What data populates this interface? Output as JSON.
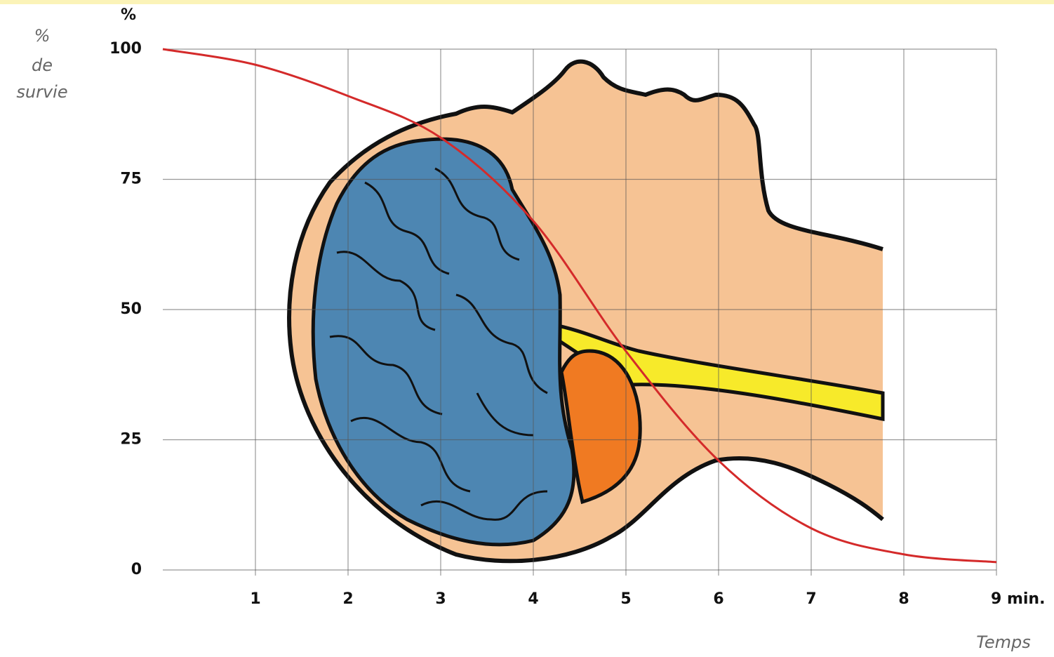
{
  "chart_data": {
    "type": "line",
    "y_unit": "%",
    "y_label": [
      "%",
      "de",
      "survie"
    ],
    "x_label": "Temps",
    "x": [
      0,
      1,
      2,
      3,
      4,
      5,
      6,
      7,
      8,
      9
    ],
    "series": [
      {
        "color": "#d42a2a",
        "values": [
          100,
          97,
          91,
          83,
          67,
          42,
          21,
          8,
          3,
          1.5
        ]
      }
    ],
    "xlim": [
      0,
      9
    ],
    "ylim": [
      0,
      100
    ],
    "xticks": [
      1,
      2,
      3,
      4,
      5,
      6,
      7,
      8,
      {
        "value": 9,
        "label": "9 min."
      }
    ],
    "yticks": [
      0,
      25,
      50,
      75,
      100
    ],
    "grid": true
  }
}
